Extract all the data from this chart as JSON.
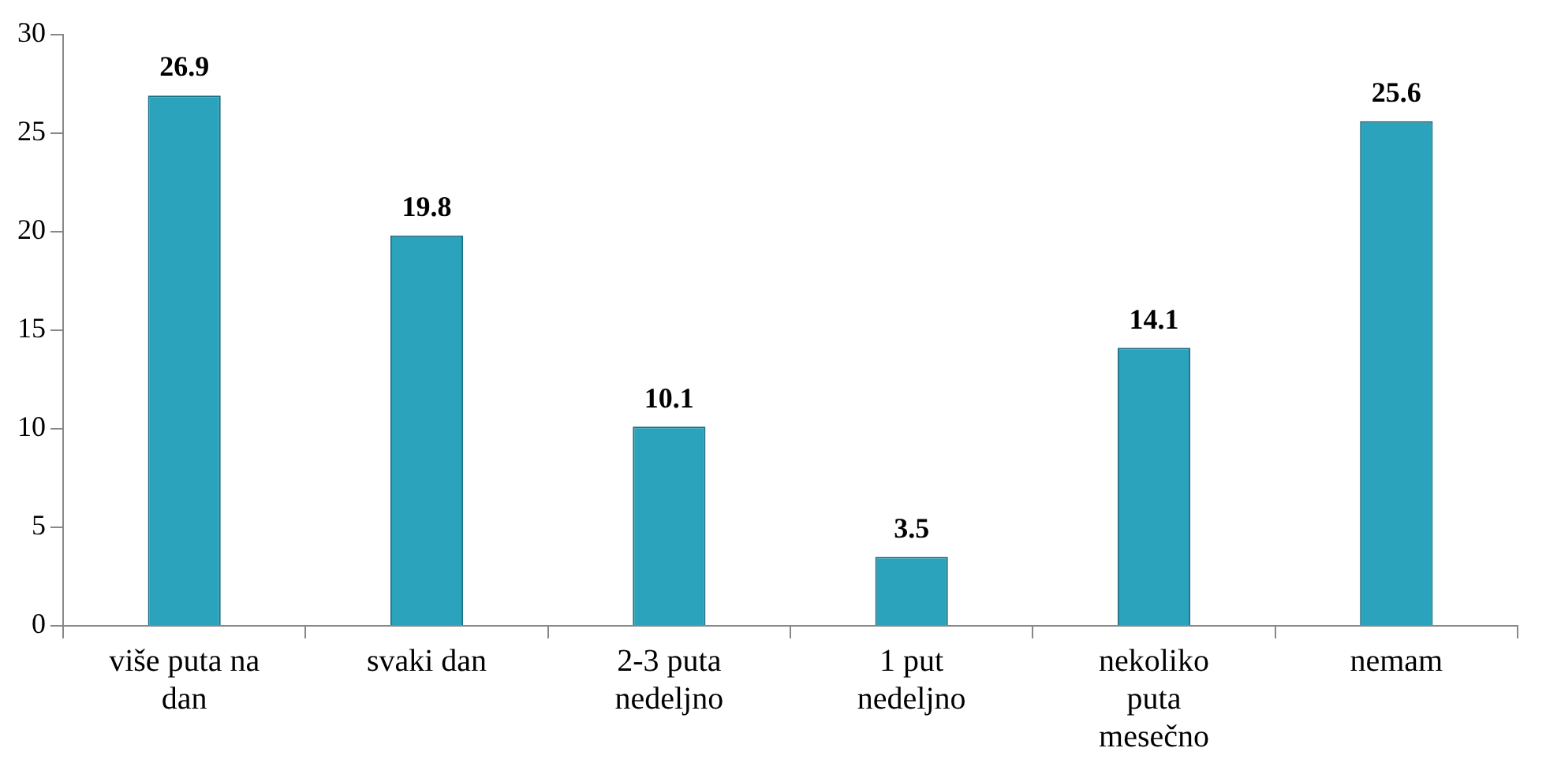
{
  "chart_data": {
    "type": "bar",
    "categories": [
      "više puta na dan",
      "svaki dan",
      "2-3 puta nedeljno",
      "1 put nedeljno",
      "nekoliko puta mesečno",
      "nemam"
    ],
    "values": [
      26.9,
      19.8,
      10.1,
      3.5,
      14.1,
      25.6
    ],
    "color": "#2ba3bd",
    "ylim": [
      0,
      30
    ],
    "yticks": [
      0,
      5,
      10,
      15,
      20,
      25,
      30
    ],
    "grid": false,
    "legend": false,
    "data_labels": true
  }
}
